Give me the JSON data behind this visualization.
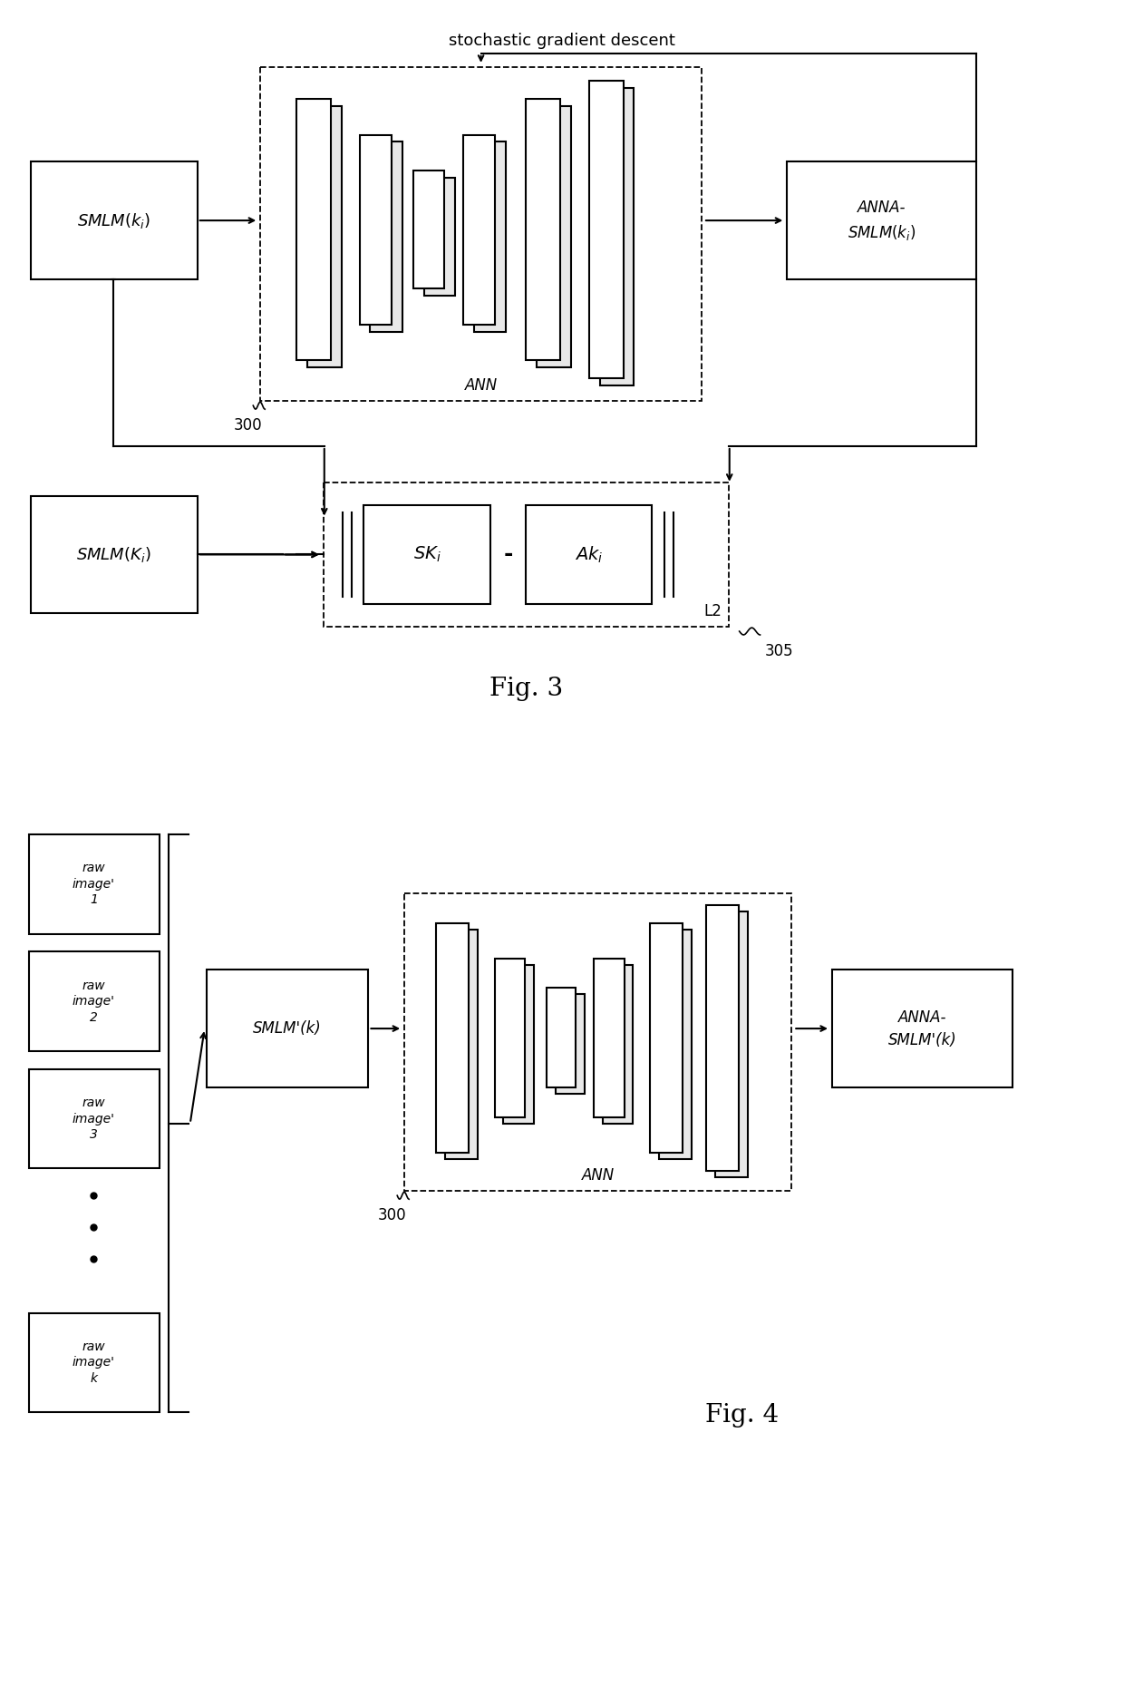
{
  "bg_color": "#ffffff",
  "lw": 1.5,
  "dashed_lw": 1.3,
  "fig3_title": "Fig. 3",
  "fig4_title": "Fig. 4",
  "sgd_label": "stochastic gradient descent",
  "ann_label": "ANN",
  "label_300": "300",
  "label_305": "305",
  "l2_label": "L2"
}
